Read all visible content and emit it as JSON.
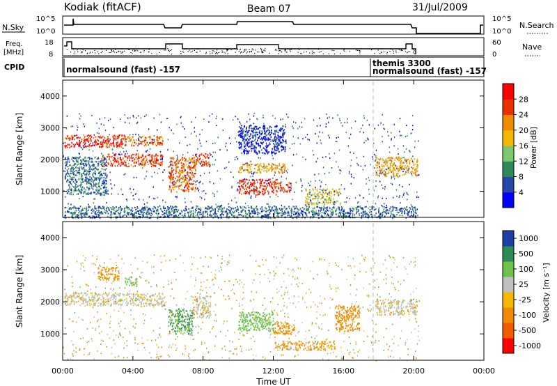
{
  "header": {
    "station": "Kodiak (fitACF)",
    "beam": "Beam 07",
    "date": "31/Jul/2009"
  },
  "summary_panels": {
    "nsky": {
      "label": "N.Sky",
      "ticks": [
        "10^5",
        "10^0"
      ],
      "right_label": "N.Search",
      "right_ticks": [
        "10^5",
        "10^0"
      ]
    },
    "freq": {
      "label_line1": "Freq.",
      "label_line2": "[MHz]",
      "ticks": [
        "18",
        "8"
      ],
      "right_label": "Nave",
      "right_ticks": [
        "60",
        "0"
      ]
    },
    "cpid": {
      "label": "CPID",
      "entries": [
        {
          "time": "00:00",
          "text": "normalsound (fast) -157"
        },
        {
          "time": "17:40",
          "text": "themis 3300"
        },
        {
          "time": "17:40",
          "text": "normalsound (fast) -157"
        }
      ]
    }
  },
  "colorbars": {
    "power": {
      "label": "Power [dB]",
      "ticks": [
        "28",
        "24",
        "20",
        "16",
        "12",
        "8",
        "4"
      ],
      "colors": [
        "#0000ff",
        "#2747a8",
        "#2e8b57",
        "#7bc96f",
        "#f5b800",
        "#f08a00",
        "#e83000",
        "#ff0000"
      ]
    },
    "velocity": {
      "label": "Velocity [m s⁻¹]",
      "ticks": [
        "1000",
        "500",
        "100",
        "25",
        "-25",
        "-100",
        "-500",
        "-1000"
      ],
      "colors": [
        "#1f3fa8",
        "#2e8b57",
        "#6cc24a",
        "#c0c0c0",
        "#f5b800",
        "#f08a00",
        "#f05a00",
        "#ff0000"
      ]
    }
  },
  "axes": {
    "ylabel": "Slant Range [km]",
    "xlabel": "Time UT",
    "y_ticks": [
      "4000",
      "3000",
      "2000",
      "1000"
    ],
    "x_ticks": [
      "00:00",
      "04:00",
      "08:00",
      "12:00",
      "16:00",
      "20:00",
      "00:00"
    ]
  },
  "chart_data": [
    {
      "type": "heatmap",
      "title": "Power",
      "x_range_hours": [
        0,
        24
      ],
      "y_range_km": [
        180,
        4500
      ],
      "value_unit": "dB",
      "data_end_hours": 20.3,
      "blobs": [
        {
          "t0": 0.1,
          "t1": 3.5,
          "r0": 2400,
          "r1": 2800,
          "v": 28
        },
        {
          "t0": 3.5,
          "t1": 5.7,
          "r0": 2450,
          "r1": 2750,
          "v": 24
        },
        {
          "t0": 2.2,
          "t1": 5.7,
          "r0": 1800,
          "r1": 2200,
          "v": 26
        },
        {
          "t0": 6.0,
          "t1": 7.6,
          "r0": 1000,
          "r1": 2100,
          "v": 24
        },
        {
          "t0": 7.5,
          "t1": 8.4,
          "r0": 1800,
          "r1": 2200,
          "v": 26
        },
        {
          "t0": 10.0,
          "t1": 12.2,
          "r0": 900,
          "r1": 1400,
          "v": 28
        },
        {
          "t0": 12.0,
          "t1": 13.0,
          "r0": 1000,
          "r1": 1300,
          "v": 26
        },
        {
          "t0": 10.0,
          "t1": 12.8,
          "r0": 1600,
          "r1": 1900,
          "v": 20
        },
        {
          "t0": 13.8,
          "t1": 15.8,
          "r0": 600,
          "r1": 1100,
          "v": 16
        },
        {
          "t0": 17.8,
          "t1": 20.2,
          "r0": 1500,
          "r1": 2100,
          "v": 20
        },
        {
          "t0": 0.1,
          "t1": 20.2,
          "r0": 180,
          "r1": 550,
          "v": 8
        },
        {
          "t0": 0.1,
          "t1": 2.5,
          "r0": 900,
          "r1": 2100,
          "v": 8
        },
        {
          "t0": 10.0,
          "t1": 12.7,
          "r0": 2200,
          "r1": 3100,
          "v": 4
        }
      ]
    },
    {
      "type": "heatmap",
      "title": "Velocity",
      "x_range_hours": [
        0,
        24
      ],
      "y_range_km": [
        180,
        4500
      ],
      "value_unit": "m s-1",
      "data_end_hours": 20.3,
      "blobs": [
        {
          "t0": 0.1,
          "t1": 5.8,
          "r0": 1900,
          "r1": 2300,
          "v": 0
        },
        {
          "t0": 2.0,
          "t1": 3.2,
          "r0": 2700,
          "r1": 3100,
          "v": -100
        },
        {
          "t0": 3.5,
          "t1": 4.2,
          "r0": 2500,
          "r1": 2800,
          "v": 100
        },
        {
          "t0": 6.0,
          "t1": 7.4,
          "r0": 1000,
          "r1": 1800,
          "v": 300
        },
        {
          "t0": 7.4,
          "t1": 8.4,
          "r0": 1500,
          "r1": 2200,
          "v": 0
        },
        {
          "t0": 10.0,
          "t1": 12.0,
          "r0": 1100,
          "r1": 1700,
          "v": 200
        },
        {
          "t0": 12.0,
          "t1": 13.2,
          "r0": 1000,
          "r1": 1400,
          "v": -100
        },
        {
          "t0": 15.5,
          "t1": 16.9,
          "r0": 1100,
          "r1": 1900,
          "v": -120
        },
        {
          "t0": 17.8,
          "t1": 20.2,
          "r0": 1600,
          "r1": 2100,
          "v": 0
        },
        {
          "t0": 12.0,
          "t1": 15.5,
          "r0": 500,
          "r1": 800,
          "v": -60
        }
      ]
    }
  ]
}
